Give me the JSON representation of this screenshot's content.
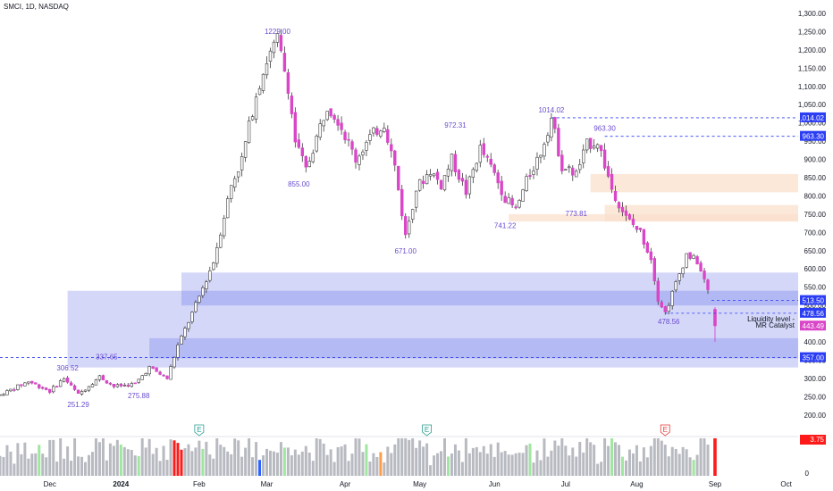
{
  "title": "SMCI, 1D, NASDAQ",
  "colors": {
    "up": "#ffffff",
    "down": "#d946c8",
    "wick": "#3b3b3b",
    "zone_blue": "#c5c9f6",
    "zone_blue_dark": "#a9b0f1",
    "zone_orange": "#fbe0cc",
    "dashed": "#2b3df5",
    "accent": "#7a4fd8",
    "vol_grey": "#b8bac1",
    "vol_green": "#9fe6a0",
    "vol_blue": "#2962ff",
    "vol_orange": "#ff9c4a",
    "vol_red": "#ff1a1a"
  },
  "chart_data": {
    "type": "candlestick",
    "ylim": [
      175,
      1300
    ],
    "y_ticks": [
      200,
      250,
      300,
      350,
      400,
      450,
      500,
      550,
      600,
      650,
      700,
      750,
      800,
      850,
      900,
      950,
      1000,
      1050,
      1100,
      1150,
      1200,
      1250,
      1300
    ],
    "y_tick_labels": [
      "200.00",
      "250.00",
      "300.00",
      "350.00",
      "400.00",
      "450.00",
      "500.00",
      "550.00",
      "600.00",
      "650.00",
      "700.00",
      "750.00",
      "800.00",
      "850.00",
      "900.00",
      "950.00",
      "1,000.00",
      "1,050.00",
      "1,100.00",
      "1,150.00",
      "1,200.00",
      "1,250.00",
      "1,300.00"
    ],
    "x_labels": [
      "Dec",
      "2024",
      "Feb",
      "Mar",
      "Apr",
      "May",
      "Jun",
      "Jul",
      "Aug",
      "Sep",
      "Oct"
    ],
    "x_label_days": [
      14,
      34,
      56,
      75,
      97,
      118,
      139,
      159,
      179,
      201,
      221
    ],
    "last_day": 199,
    "swing_points": [
      [
        0,
        255
      ],
      [
        8,
        292
      ],
      [
        14,
        265
      ],
      [
        18,
        301
      ],
      [
        22,
        256
      ],
      [
        28,
        305
      ],
      [
        32,
        278
      ],
      [
        38,
        285
      ],
      [
        42,
        330
      ],
      [
        47,
        300
      ],
      [
        50,
        390
      ],
      [
        55,
        500
      ],
      [
        60,
        620
      ],
      [
        65,
        830
      ],
      [
        68,
        900
      ],
      [
        72,
        1080
      ],
      [
        75,
        1170
      ],
      [
        78,
        1229
      ],
      [
        81,
        1100
      ],
      [
        83,
        950
      ],
      [
        86,
        870
      ],
      [
        89,
        960
      ],
      [
        92,
        1050
      ],
      [
        95,
        1010
      ],
      [
        100,
        900
      ],
      [
        104,
        960
      ],
      [
        108,
        1000
      ],
      [
        111,
        880
      ],
      [
        114,
        690
      ],
      [
        117,
        820
      ],
      [
        121,
        870
      ],
      [
        124,
        830
      ],
      [
        127,
        900
      ],
      [
        131,
        810
      ],
      [
        135,
        930
      ],
      [
        139,
        860
      ],
      [
        142,
        795
      ],
      [
        145,
        760
      ],
      [
        148,
        840
      ],
      [
        152,
        920
      ],
      [
        155,
        1014
      ],
      [
        158,
        880
      ],
      [
        162,
        860
      ],
      [
        165,
        940
      ],
      [
        168,
        950
      ],
      [
        172,
        820
      ],
      [
        176,
        740
      ],
      [
        180,
        700
      ],
      [
        183,
        630
      ],
      [
        185,
        520
      ],
      [
        187,
        480
      ],
      [
        190,
        560
      ],
      [
        193,
        640
      ],
      [
        196,
        620
      ],
      [
        199,
        540
      ],
      [
        200,
        525
      ]
    ],
    "last_candle": {
      "day": 201,
      "open": 490,
      "high": 495,
      "low": 400,
      "close": 443.49
    },
    "price_labels": [
      {
        "text": "1,014.02",
        "value": 1014.02,
        "color": "#2b3df5"
      },
      {
        "text": "963.30",
        "value": 963.3,
        "color": "#2b3df5"
      },
      {
        "text": "513.50",
        "value": 513.5,
        "color": "#2b3df5"
      },
      {
        "text": "478.56",
        "value": 478.56,
        "color": "#2b3df5"
      },
      {
        "text": "443.49",
        "value": 443.49,
        "color": "#d946c8"
      },
      {
        "text": "357.00",
        "value": 357.0,
        "color": "#2b3df5"
      }
    ],
    "annotations": [
      {
        "text": "1229.00",
        "day": 78,
        "value": 1229,
        "pos": "above"
      },
      {
        "text": "855.00",
        "day": 84,
        "value": 855,
        "pos": "below"
      },
      {
        "text": "671.00",
        "day": 114,
        "value": 671,
        "pos": "below"
      },
      {
        "text": "972.31",
        "day": 128,
        "value": 972.31,
        "pos": "above"
      },
      {
        "text": "1014.02",
        "day": 155,
        "value": 1014.02,
        "pos": "above"
      },
      {
        "text": "963.30",
        "day": 170,
        "value": 963.3,
        "pos": "above"
      },
      {
        "text": "741.22",
        "day": 142,
        "value": 741.22,
        "pos": "below"
      },
      {
        "text": "773.81",
        "day": 162,
        "value": 773.81,
        "pos": "below"
      },
      {
        "text": "478.56",
        "day": 188,
        "value": 478.56,
        "pos": "below"
      },
      {
        "text": "306.52",
        "day": 19,
        "value": 306.52,
        "pos": "above"
      },
      {
        "text": "337.65",
        "day": 30,
        "value": 337.65,
        "pos": "above"
      },
      {
        "text": "251.29",
        "day": 22,
        "value": 251.29,
        "pos": "below"
      },
      {
        "text": "275.88",
        "day": 39,
        "value": 275.88,
        "pos": "below"
      }
    ],
    "zones": [
      {
        "from_day": 19,
        "to_day": 228,
        "low": 330,
        "high": 540,
        "color": "zone_blue"
      },
      {
        "from_day": 51,
        "to_day": 228,
        "low": 500,
        "high": 590,
        "color": "zone_blue"
      },
      {
        "from_day": 51,
        "to_day": 228,
        "low": 500,
        "high": 540,
        "color": "zone_blue_dark"
      },
      {
        "from_day": 42,
        "to_day": 228,
        "low": 355,
        "high": 410,
        "color": "zone_blue_dark"
      },
      {
        "from_day": 166,
        "to_day": 228,
        "low": 810,
        "high": 860,
        "color": "zone_orange"
      },
      {
        "from_day": 143,
        "to_day": 228,
        "low": 730,
        "high": 750,
        "color": "zone_orange"
      },
      {
        "from_day": 170,
        "to_day": 228,
        "low": 730,
        "high": 775,
        "color": "zone_orange"
      }
    ],
    "dashed_lines": [
      {
        "from_day": 155,
        "value": 1014.02
      },
      {
        "from_day": 170,
        "value": 963.3
      },
      {
        "from_day": 200,
        "value": 513.5
      },
      {
        "from_day": 187,
        "value": 478.56
      },
      {
        "from_day": 0,
        "value": 357.0
      }
    ],
    "liquidity_note": [
      "Liquidity level -",
      "MR Catalyst"
    ],
    "earnings_days": [
      56,
      120,
      187
    ],
    "earnings_letter": "E",
    "volume_label": "3.75",
    "volume_zero_label": "0"
  }
}
